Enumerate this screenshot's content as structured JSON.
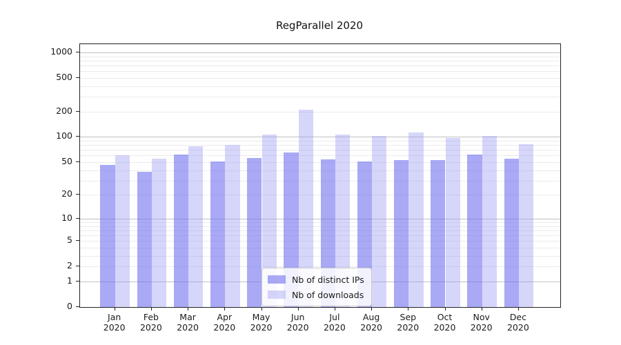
{
  "chart_data": {
    "type": "bar",
    "title": "RegParallel 2020",
    "categories": [
      "Jan",
      "Feb",
      "Mar",
      "Apr",
      "May",
      "Jun",
      "Jul",
      "Aug",
      "Sep",
      "Oct",
      "Nov",
      "Dec"
    ],
    "category_year": "2020",
    "series": [
      {
        "name": "Nb of distinct IPs",
        "color": "rgba(106,106,238,0.58)",
        "values": [
          46,
          38,
          62,
          51,
          56,
          65,
          54,
          51,
          53,
          53,
          62,
          55
        ]
      },
      {
        "name": "Nb of downloads",
        "color": "rgba(158,158,245,0.42)",
        "values": [
          60,
          55,
          77,
          80,
          106,
          210,
          106,
          103,
          112,
          97,
          103,
          82
        ]
      }
    ],
    "xlabel": "",
    "ylabel": "",
    "yscale": "log1p",
    "ylim": [
      0,
      1250
    ],
    "yticks": [
      0,
      1,
      2,
      5,
      10,
      20,
      50,
      100,
      200,
      500,
      1000
    ],
    "major_gridlines": [
      1,
      10,
      100,
      1000
    ],
    "minor_gridlines": [
      2,
      3,
      4,
      5,
      6,
      7,
      8,
      9,
      20,
      30,
      40,
      50,
      60,
      70,
      80,
      90,
      200,
      300,
      400,
      500,
      600,
      700,
      800,
      900
    ],
    "grid": "on",
    "legend_position": "lower center",
    "colors": {
      "major_grid": "#c0c0c0",
      "minor_grid": "#ebebeb",
      "spine": "#222222",
      "text": "#1a1a1a"
    }
  }
}
